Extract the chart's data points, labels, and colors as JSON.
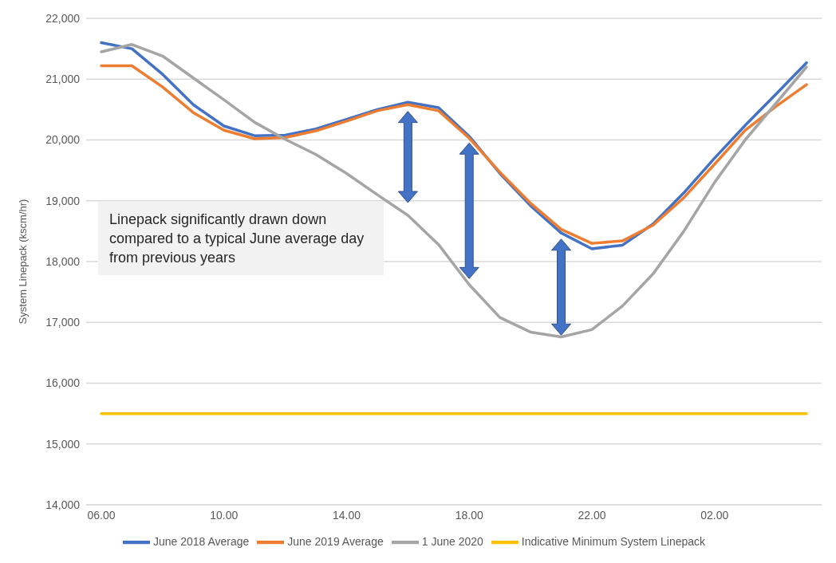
{
  "chart_data": {
    "type": "line",
    "ylabel": "System Linepack (kscm/hr)",
    "categories": [
      "06.00",
      null,
      null,
      null,
      "10.00",
      null,
      null,
      null,
      "14.00",
      null,
      null,
      null,
      "18.00",
      null,
      null,
      null,
      "22.00",
      null,
      null,
      null,
      "02.00",
      null,
      null,
      null
    ],
    "series": [
      {
        "name": "June 2018 Average",
        "color": "#4472c4",
        "values": [
          21600,
          21500,
          21080,
          20580,
          20230,
          20070,
          20080,
          20180,
          20340,
          20500,
          20620,
          20530,
          20060,
          19450,
          18920,
          18470,
          18210,
          18270,
          18620,
          19130,
          19700,
          20240,
          20750,
          21270
        ]
      },
      {
        "name": "June 2019 Average",
        "color": "#ed7d31",
        "values": [
          21220,
          21220,
          20870,
          20450,
          20160,
          20020,
          20040,
          20150,
          20310,
          20480,
          20580,
          20480,
          20030,
          19470,
          18960,
          18530,
          18300,
          18340,
          18600,
          19050,
          19600,
          20160,
          20550,
          20910
        ]
      },
      {
        "name": "1 June 2020",
        "color": "#a5a5a5",
        "values": [
          21450,
          21570,
          21380,
          21020,
          20660,
          20290,
          20010,
          19760,
          19450,
          19100,
          18760,
          18280,
          17620,
          17080,
          16840,
          16760,
          16880,
          17270,
          17800,
          18500,
          19300,
          20000,
          20600,
          21200
        ]
      },
      {
        "name": "Indicative Minimum System Linepack",
        "color": "#ffc000",
        "values": [
          15500,
          15500,
          15500,
          15500,
          15500,
          15500,
          15500,
          15500,
          15500,
          15500,
          15500,
          15500,
          15500,
          15500,
          15500,
          15500,
          15500,
          15500,
          15500,
          15500,
          15500,
          15500,
          15500,
          15500
        ]
      }
    ],
    "ylim": [
      14000,
      22000
    ],
    "yticks": [
      {
        "value": 14000,
        "label": "14,000"
      },
      {
        "value": 15000,
        "label": "15,000"
      },
      {
        "value": 16000,
        "label": "16,000"
      },
      {
        "value": 17000,
        "label": "17,000"
      },
      {
        "value": 18000,
        "label": "18,000"
      },
      {
        "value": 19000,
        "label": "19,000"
      },
      {
        "value": 20000,
        "label": "20,000"
      },
      {
        "value": 21000,
        "label": "21,000"
      },
      {
        "value": 22000,
        "label": "22,000"
      }
    ],
    "grid": "y",
    "legend": "bottom",
    "marker": "none",
    "line_style": "solid",
    "annotations": [
      "Linepack significantly drawn down compared to a typical June average day from previous years"
    ]
  }
}
